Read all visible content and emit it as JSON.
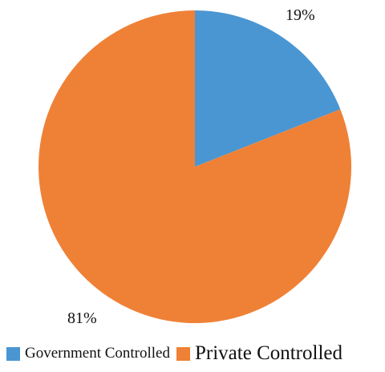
{
  "chart_data": {
    "type": "pie",
    "categories": [
      "Government Controlled",
      "Private Controlled"
    ],
    "values": [
      19,
      81
    ],
    "data_labels": [
      "19%",
      "81%"
    ],
    "colors": [
      "#4a96d2",
      "#ef8136"
    ],
    "legend_placement": "bottom",
    "title": ""
  },
  "legend": {
    "items": [
      {
        "label": "Government Controlled",
        "color": "#4a96d2"
      },
      {
        "label": "Private Controlled",
        "color": "#ef8136"
      }
    ]
  }
}
